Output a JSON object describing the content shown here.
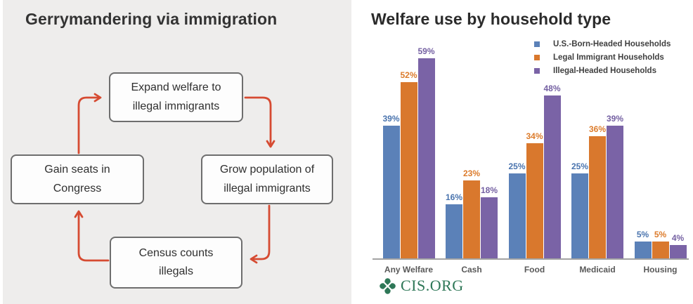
{
  "diagram": {
    "title": "Gerrymandering via immigration",
    "arrow_color": "#d64b32",
    "nodes": [
      {
        "id": "expand-welfare",
        "line1": "Expand welfare to",
        "line2": "illegal immigrants"
      },
      {
        "id": "grow-population",
        "line1": "Grow population of",
        "line2": "illegal immigrants"
      },
      {
        "id": "census-counts",
        "line1": "Census counts",
        "line2": "illegals"
      },
      {
        "id": "gain-seats",
        "line1": "Gain seats in",
        "line2": "Congress"
      }
    ]
  },
  "chart": {
    "title": "Welfare use by household type",
    "source_logo_text": "CIS.ORG",
    "logo_color": "#2e7757"
  },
  "chart_data": {
    "type": "bar",
    "title": "Welfare use by household type",
    "categories": [
      "Any Welfare",
      "Cash",
      "Food",
      "Medicaid",
      "Housing"
    ],
    "series": [
      {
        "name": "U.S.-Born-Headed Households",
        "color": "#5b81b8",
        "label_color": "#4a74ae",
        "values": [
          39,
          16,
          25,
          25,
          5
        ]
      },
      {
        "name": "Legal Immigrant Households",
        "color": "#d9782d",
        "label_color": "#dc7b2b",
        "values": [
          52,
          23,
          34,
          36,
          5
        ]
      },
      {
        "name": "Illegal-Headed Households",
        "color": "#7a63a6",
        "label_color": "#7460a2",
        "values": [
          59,
          18,
          48,
          39,
          4
        ]
      }
    ],
    "value_suffix": "%",
    "ylim": [
      0,
      60
    ],
    "grid": false,
    "legend_position": "top-right"
  }
}
